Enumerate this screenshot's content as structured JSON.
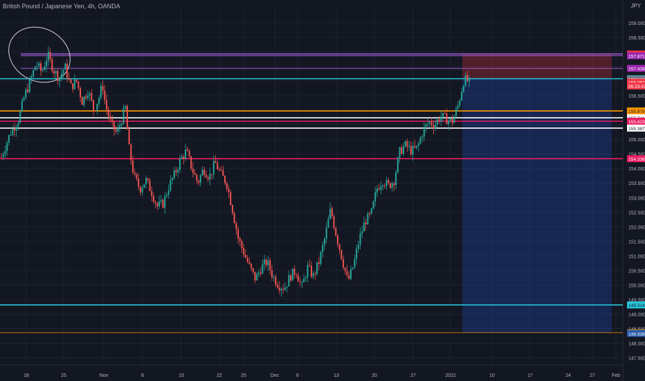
{
  "header": {
    "symbol_title": "British Pound / Japanese Yen, 4h, OANDA",
    "currency": "JPY"
  },
  "chart_data": {
    "type": "candlestick",
    "grid": true,
    "ylim": [
      147.25,
      159.5
    ],
    "y_ticks": [
      "159.000",
      "158.500",
      "158.000",
      "157.500",
      "157.000",
      "156.500",
      "156.000",
      "155.500",
      "155.000",
      "154.500",
      "154.000",
      "153.500",
      "153.000",
      "152.500",
      "152.000",
      "151.500",
      "151.000",
      "150.500",
      "150.000",
      "149.500",
      "149.000",
      "148.500",
      "148.000",
      "147.500"
    ],
    "x_ticks": [
      "18",
      "25",
      "Nov",
      "8",
      "15",
      "22",
      "25",
      "Dec",
      "6",
      "13",
      "20",
      "27",
      "2022",
      "10",
      "17",
      "24",
      "27",
      "Feb"
    ],
    "close_path": [
      [
        0,
        154.4
      ],
      [
        3,
        155.2
      ],
      [
        6,
        155.7
      ],
      [
        8,
        156.5
      ],
      [
        10,
        157.0
      ],
      [
        12,
        157.6
      ],
      [
        14,
        157.3
      ],
      [
        16,
        157.9
      ],
      [
        18,
        157.4
      ],
      [
        20,
        157.1
      ],
      [
        22,
        157.5
      ],
      [
        24,
        156.8
      ],
      [
        26,
        157.0
      ],
      [
        28,
        156.3
      ],
      [
        30,
        156.7
      ],
      [
        32,
        156.0
      ],
      [
        34,
        156.5
      ],
      [
        35,
        156.9
      ],
      [
        36,
        156.2
      ],
      [
        38,
        155.5
      ],
      [
        40,
        155.2
      ],
      [
        42,
        155.8
      ],
      [
        43,
        156.1
      ],
      [
        44,
        154.8
      ],
      [
        46,
        153.7
      ],
      [
        48,
        153.3
      ],
      [
        50,
        153.6
      ],
      [
        52,
        153.2
      ],
      [
        54,
        152.7
      ],
      [
        56,
        152.8
      ],
      [
        58,
        153.4
      ],
      [
        60,
        153.8
      ],
      [
        62,
        154.3
      ],
      [
        64,
        154.6
      ],
      [
        66,
        154.0
      ],
      [
        68,
        153.5
      ],
      [
        70,
        154.0
      ],
      [
        72,
        153.7
      ],
      [
        74,
        154.2
      ],
      [
        76,
        153.8
      ],
      [
        78,
        153.5
      ],
      [
        80,
        152.6
      ],
      [
        82,
        151.6
      ],
      [
        84,
        151.1
      ],
      [
        86,
        150.6
      ],
      [
        88,
        150.2
      ],
      [
        90,
        150.6
      ],
      [
        92,
        150.8
      ],
      [
        94,
        150.3
      ],
      [
        96,
        150.0
      ],
      [
        98,
        149.9
      ],
      [
        100,
        150.3
      ],
      [
        102,
        150.5
      ],
      [
        104,
        149.9
      ],
      [
        106,
        150.6
      ],
      [
        108,
        150.3
      ],
      [
        110,
        150.8
      ],
      [
        112,
        151.6
      ],
      [
        114,
        152.6
      ],
      [
        116,
        151.7
      ],
      [
        118,
        150.9
      ],
      [
        120,
        150.1
      ],
      [
        122,
        150.7
      ],
      [
        124,
        151.6
      ],
      [
        126,
        152.2
      ],
      [
        128,
        152.4
      ],
      [
        130,
        153.3
      ],
      [
        132,
        153.6
      ],
      [
        134,
        153.4
      ],
      [
        136,
        153.6
      ],
      [
        138,
        154.6
      ],
      [
        140,
        154.8
      ],
      [
        142,
        154.6
      ],
      [
        144,
        154.7
      ],
      [
        146,
        155.3
      ],
      [
        148,
        155.6
      ],
      [
        150,
        155.5
      ],
      [
        152,
        155.8
      ],
      [
        154,
        155.7
      ],
      [
        156,
        155.6
      ],
      [
        158,
        156.1
      ],
      [
        160,
        157.0
      ],
      [
        161,
        157.05
      ],
      [
        162,
        156.95
      ]
    ],
    "horizontal_levels": [
      {
        "price": 157.931,
        "label": "157.931",
        "color": "#9c5ad0",
        "label_bg": "#f23645"
      },
      {
        "price": 157.871,
        "label": "157.871",
        "color": "#9c5ad0",
        "label_bg": "#9c27b0"
      },
      {
        "price": 157.438,
        "label": "157.438",
        "color": "#9c5ad0",
        "label_bg": "#9c27b0"
      },
      {
        "price": 157.083,
        "label": "157.083",
        "color": "#26c6da",
        "label_bg": "#26c6da"
      },
      {
        "price": 157.065,
        "label": "157.065",
        "color": "#787b86",
        "label_bg": "#787b86"
      },
      {
        "price": 156.962,
        "label": "156.962",
        "color": "#f23645",
        "label_bg": "#f23645"
      },
      {
        "price": 156.832,
        "label": "05:23:47",
        "color": "#f23645",
        "label_bg": "#f23645"
      },
      {
        "price": 155.975,
        "label": "155.975",
        "color": "#ff9800",
        "label_bg": "#ff9800"
      },
      {
        "price": 155.741,
        "label": "155.741",
        "color": "#ffffff",
        "label_bg": "#ffffff"
      },
      {
        "price": 155.623,
        "label": "155.623",
        "color": "#e91e63",
        "label_bg": "#e91e63"
      },
      {
        "price": 155.387,
        "label": "155.387",
        "color": "#ffffff",
        "label_bg": "#ffffff"
      },
      {
        "price": 154.336,
        "label": "154.336",
        "color": "#e91e63",
        "label_bg": "#e91e63"
      },
      {
        "price": 149.314,
        "label": "149.314",
        "color": "#26c6da",
        "label_bg": "#26c6da"
      },
      {
        "price": 148.356,
        "label": "148.356",
        "color": "#ff9800",
        "label_bg": "#ff9800"
      },
      {
        "price": 148.338,
        "label": "148.338",
        "color": "#131722",
        "label_bg": "#2a5caa"
      }
    ],
    "position_zone": {
      "entry": 157.083,
      "stop": 157.931,
      "target": 148.338,
      "stop_color": "#f23645",
      "target_color": "#2962ff"
    },
    "colors": {
      "up": "#26a69a",
      "down": "#ef5350",
      "background": "#131722",
      "axis_text": "#b2b5be"
    }
  }
}
